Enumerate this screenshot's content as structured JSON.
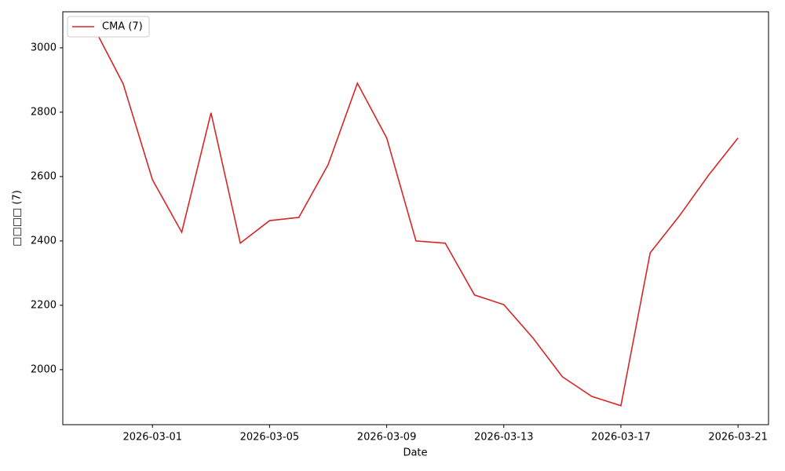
{
  "chart_data": {
    "type": "line",
    "x": [
      "2026-02-27",
      "2026-02-28",
      "2026-03-01",
      "2026-03-02",
      "2026-03-03",
      "2026-03-04",
      "2026-03-05",
      "2026-03-06",
      "2026-03-07",
      "2026-03-08",
      "2026-03-09",
      "2026-03-10",
      "2026-03-11",
      "2026-03-12",
      "2026-03-13",
      "2026-03-14",
      "2026-03-15",
      "2026-03-16",
      "2026-03-17",
      "2026-03-18",
      "2026-03-19",
      "2026-03-20",
      "2026-03-21"
    ],
    "series": [
      {
        "name": "CMA (7)",
        "color": "#d62728",
        "values": [
          3063,
          2888,
          2590,
          2427,
          2798,
          2393,
          2463,
          2473,
          2637,
          2890,
          2720,
          2400,
          2393,
          2232,
          2202,
          2098,
          1978,
          1917,
          1888,
          2363,
          2478,
          2605,
          2720
        ]
      }
    ],
    "xlabel": "Date",
    "ylabel": "□□□□ (7)",
    "xlim": [
      "2026-02-25T22:30",
      "2026-03-22T01:00"
    ],
    "xticks": [
      "2026-03-01",
      "2026-03-05",
      "2026-03-09",
      "2026-03-13",
      "2026-03-17",
      "2026-03-21"
    ],
    "ylim": [
      1829,
      3112
    ],
    "yticks": [
      2000,
      2200,
      2400,
      2600,
      2800,
      3000
    ],
    "legend": "upper left",
    "grid": false
  }
}
